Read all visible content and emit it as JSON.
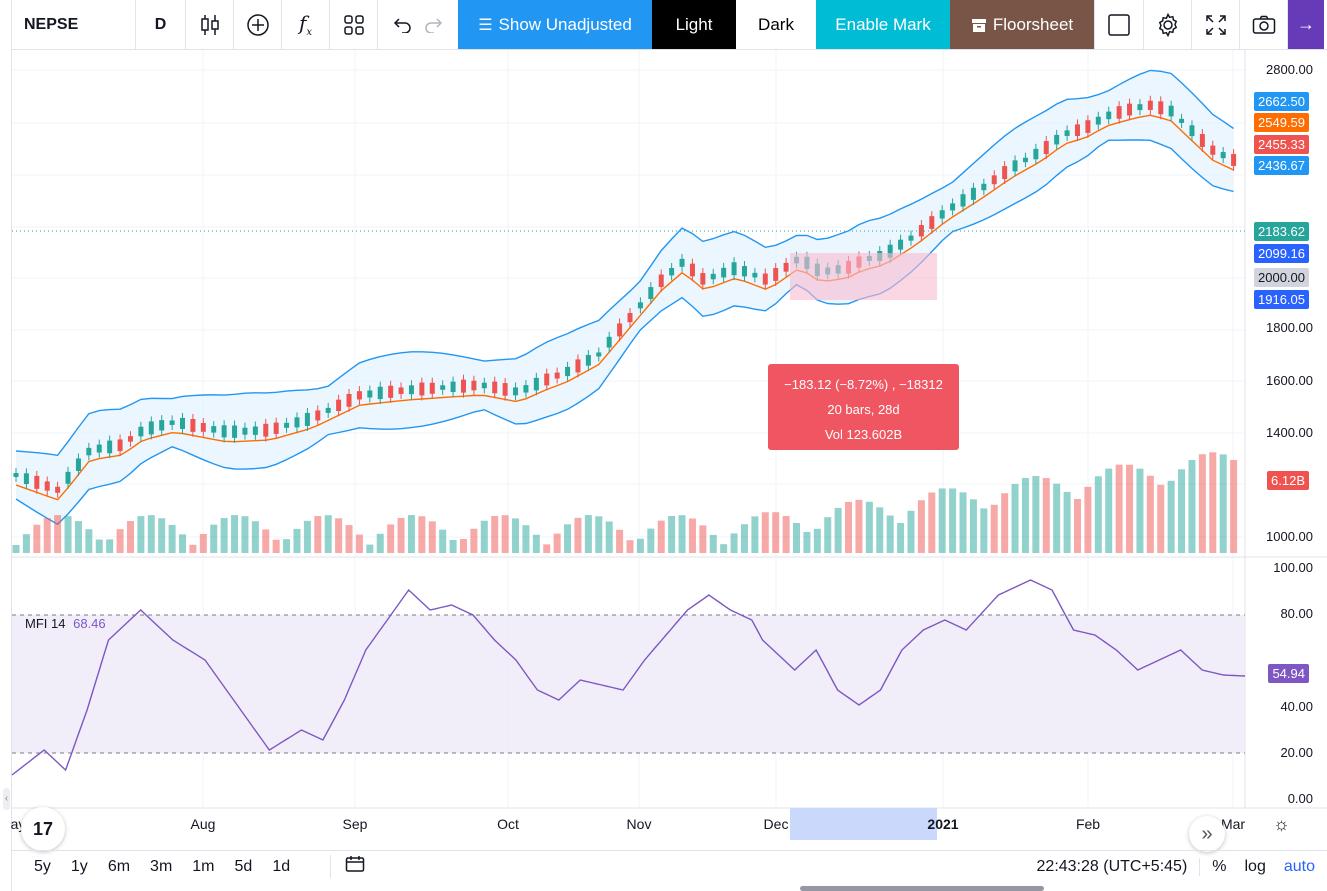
{
  "toolbar": {
    "symbol": "NEPSE",
    "interval": "D",
    "fx_label": "f",
    "show_unadjusted": "Show Unadjusted",
    "light": "Light",
    "dark": "Dark",
    "enable_mark": "Enable Mark",
    "floorsheet": "Floorsheet",
    "icons": [
      "candles-icon",
      "plus-circle-icon",
      "fx-icon",
      "layouts-icon",
      "undo-icon",
      "redo-icon",
      "square-icon",
      "gear-icon",
      "fullscreen-icon",
      "camera-icon",
      "arrow-right-icon"
    ]
  },
  "price_axis": {
    "ticks": [
      "2800.00",
      "1800.00",
      "1600.00",
      "1400.00",
      "1000.00"
    ],
    "labels": [
      {
        "text": "2662.50",
        "color": "#2196f3"
      },
      {
        "text": "2549.59",
        "color": "#ff6d00"
      },
      {
        "text": "2455.33",
        "color": "#ef5350"
      },
      {
        "text": "2436.67",
        "color": "#2196f3"
      },
      {
        "text": "2183.62",
        "color": "#26a69a"
      },
      {
        "text": "2099.16",
        "color": "#2962ff"
      },
      {
        "text": "2000.00",
        "color": "#d1d4dc"
      },
      {
        "text": "1916.05",
        "color": "#2962ff"
      },
      {
        "text": "6.12B",
        "color": "#ef5350"
      }
    ]
  },
  "mfi_axis": {
    "ticks": [
      "100.00",
      "80.00",
      "40.00",
      "20.00",
      "0.00"
    ],
    "current": "54.94",
    "current_color": "#7e57c2"
  },
  "mfi": {
    "name": "MFI",
    "length": "14",
    "value": "68.46"
  },
  "tooltip": {
    "line1": "−183.12 (−8.72%) , −18312",
    "line2": "20 bars, 28d",
    "line3": "Vol 123.602B"
  },
  "time_axis": {
    "ticks": [
      "ay",
      "Aug",
      "Sep",
      "Oct",
      "Nov",
      "Dec",
      "2021",
      "Feb",
      "Mar"
    ]
  },
  "bottom_bar": {
    "ranges": [
      "5y",
      "1y",
      "6m",
      "3m",
      "1m",
      "5d",
      "1d"
    ],
    "time": "22:43:28 (UTC+5:45)",
    "percent": "%",
    "log": "log",
    "auto": "auto"
  },
  "chart_data": {
    "type": "candlestick",
    "series_up_color": "#26a69a",
    "series_down_color": "#ef5350",
    "ylim": [
      1000,
      2800
    ],
    "mfi_ylim": [
      0,
      100
    ]
  }
}
